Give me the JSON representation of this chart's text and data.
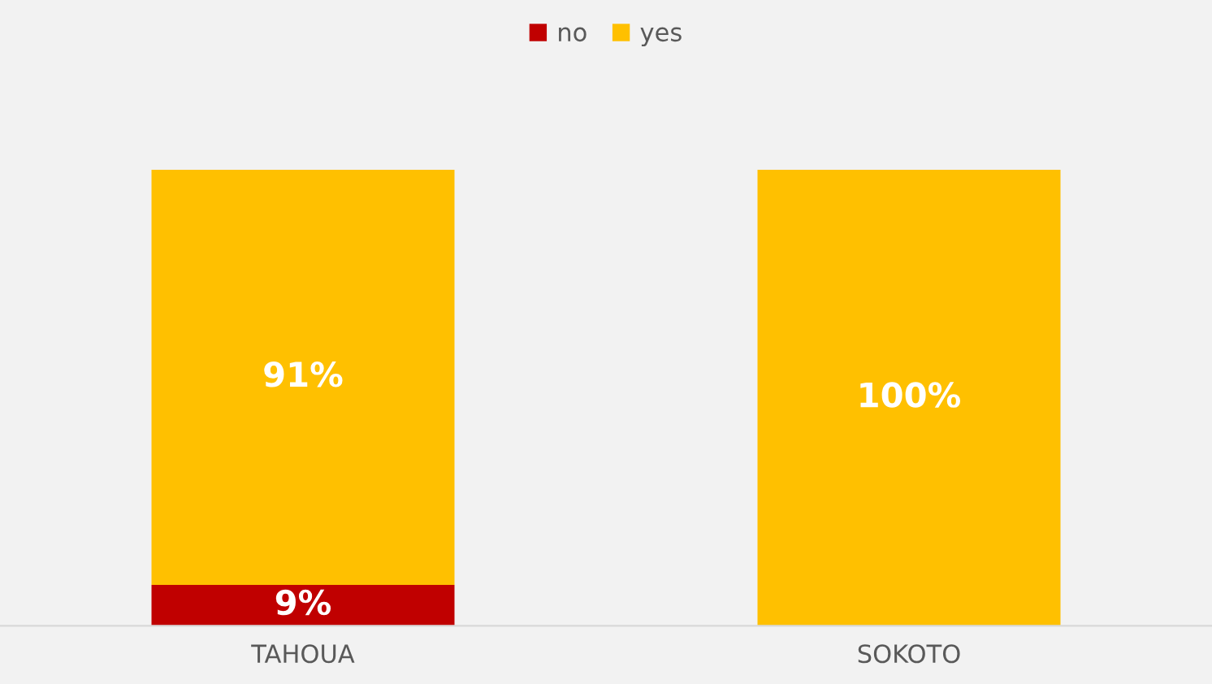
{
  "chart_data": {
    "type": "bar",
    "stacked": true,
    "categories": [
      "TAHOUA",
      "SOKOTO"
    ],
    "series": [
      {
        "name": "no",
        "color": "#c00000",
        "values": [
          9,
          null
        ],
        "value_labels": [
          "9%",
          null
        ]
      },
      {
        "name": "yes",
        "color": "#ffc000",
        "values": [
          91,
          100
        ],
        "value_labels": [
          "91%",
          "100%"
        ]
      }
    ],
    "legend": "top"
  }
}
